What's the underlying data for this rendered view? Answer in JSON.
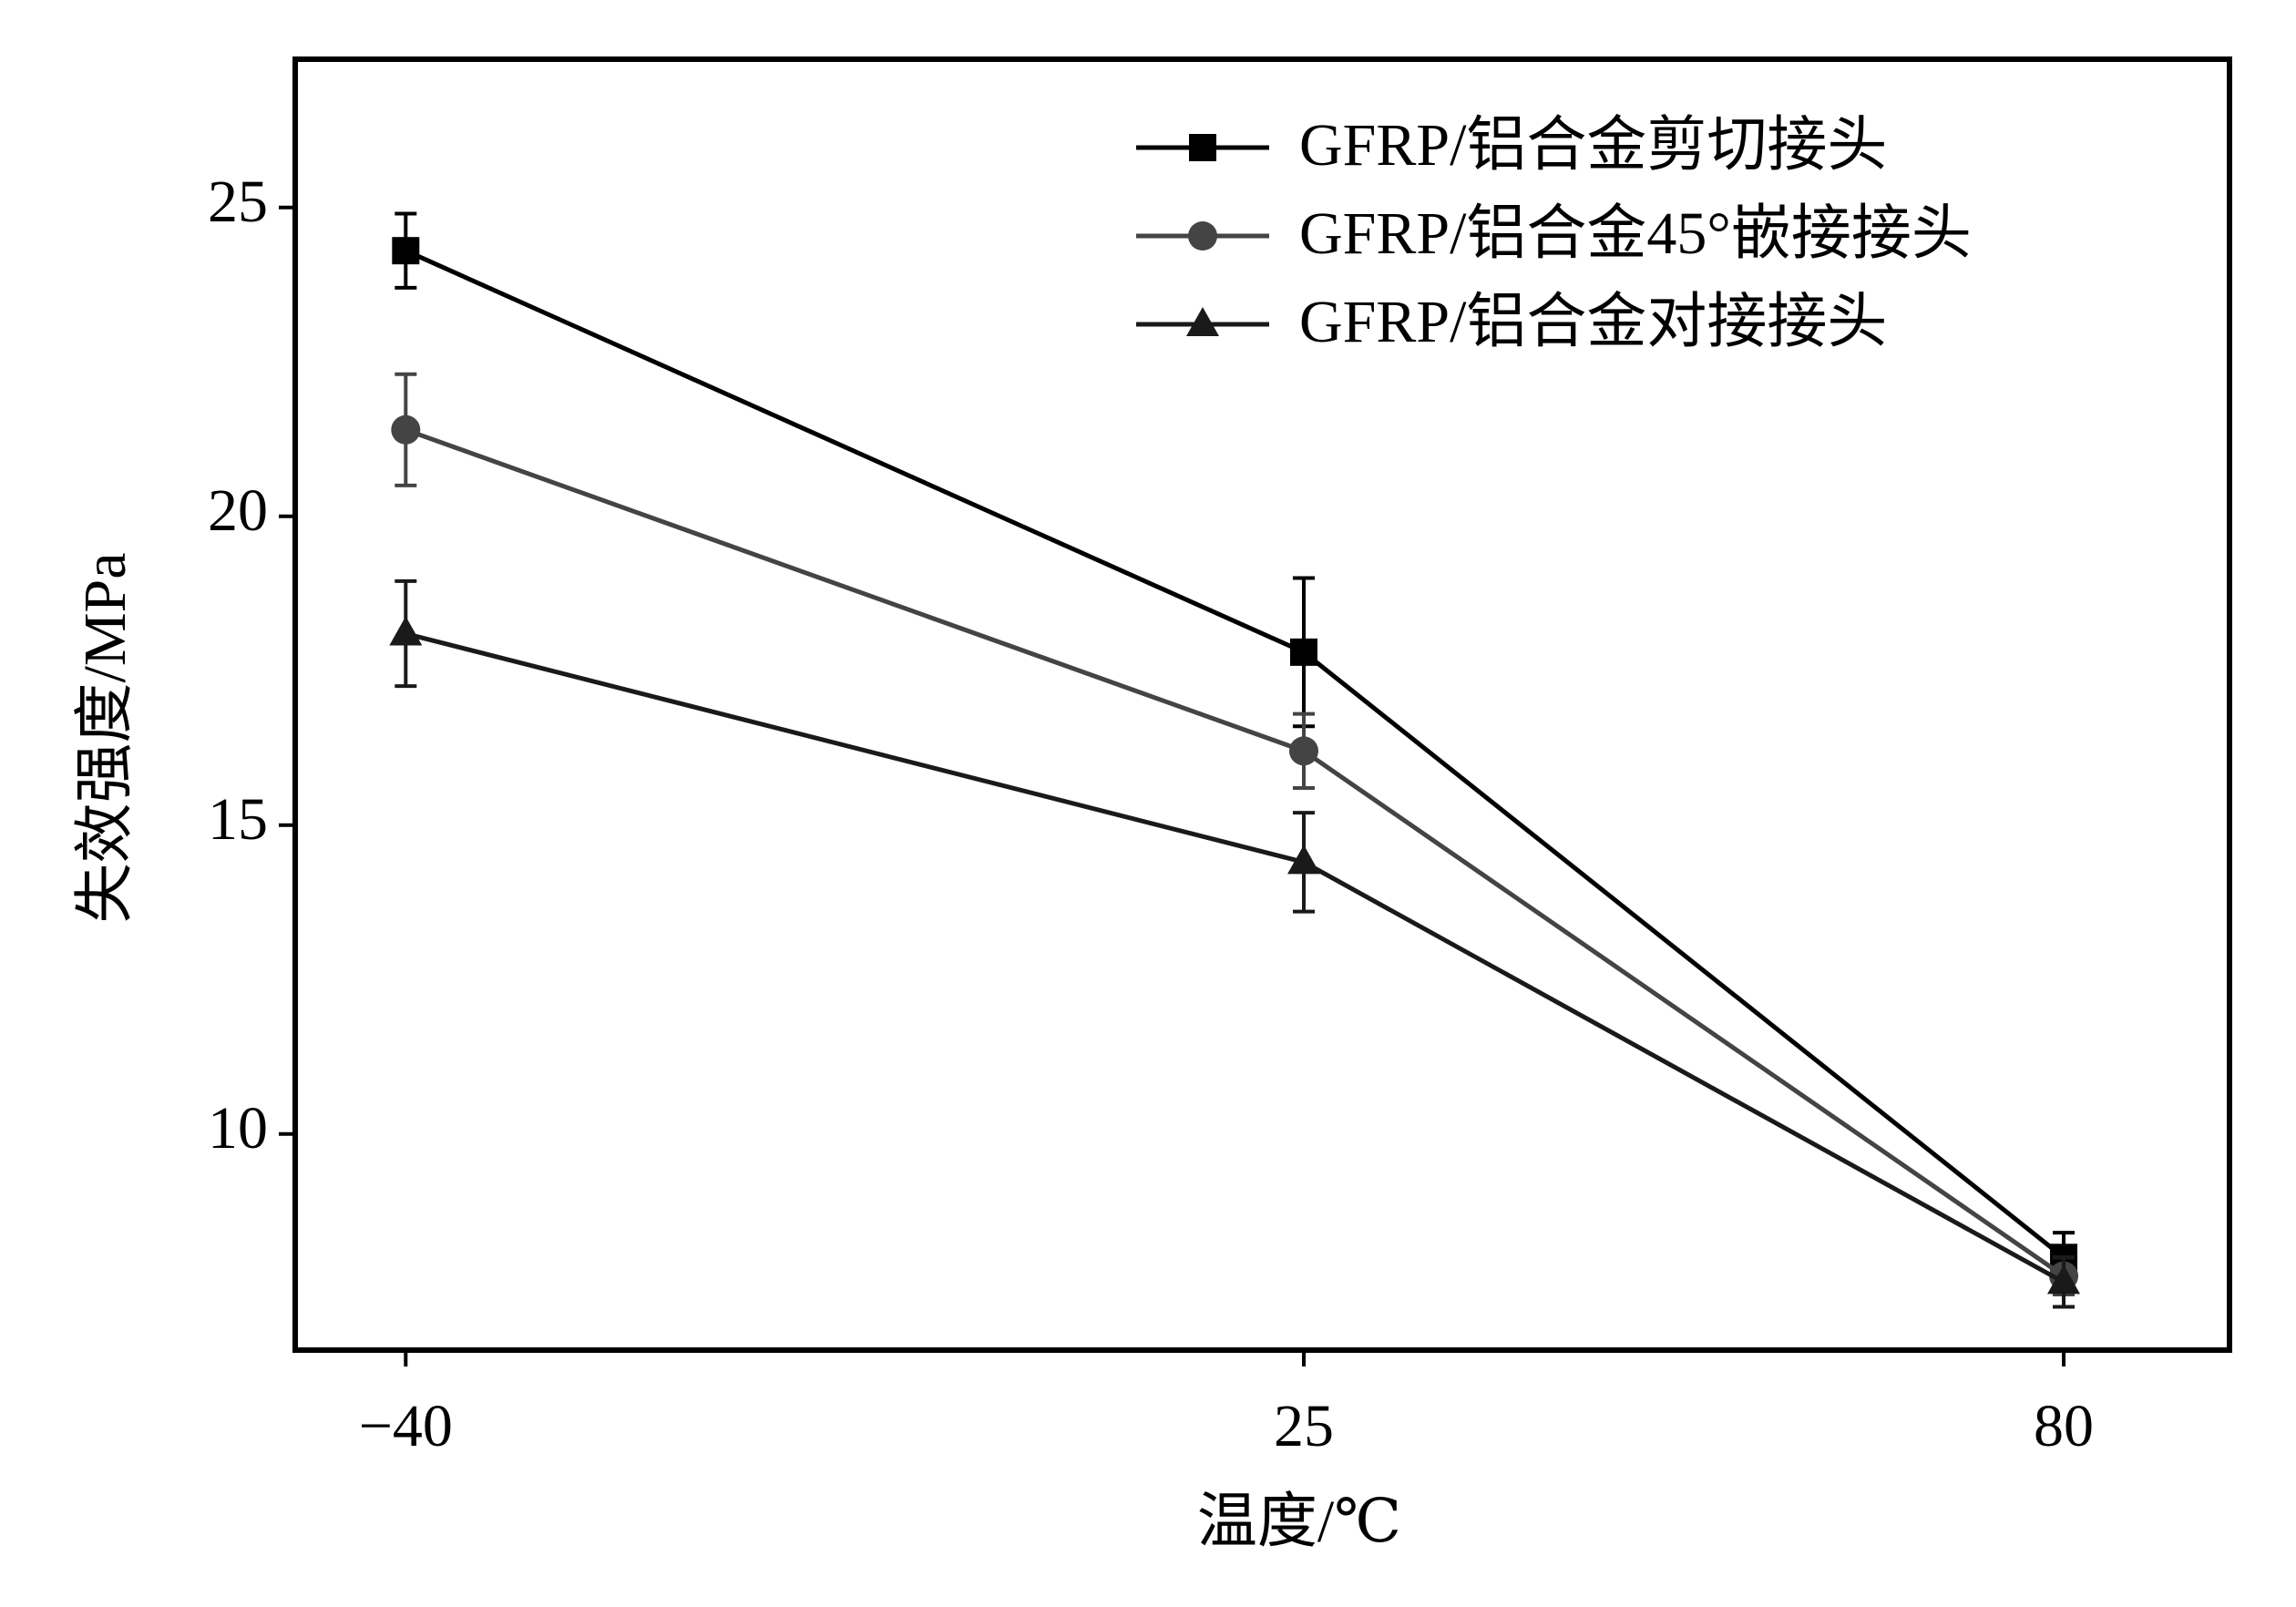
{
  "chart_data": {
    "type": "line",
    "x_label": "温度/℃",
    "y_label": "失效强度/MPa",
    "x": [
      -40,
      25,
      80
    ],
    "xlim": [
      -48,
      92
    ],
    "xticks": [
      {
        "value": -40,
        "label": "−40"
      },
      25,
      80
    ],
    "ylim": [
      6.5,
      27.4
    ],
    "yticks": [
      10,
      15,
      20,
      25
    ],
    "legend": "upper right",
    "series": [
      {
        "name": "GFRP/铝合金剪切接头",
        "color": "#000000",
        "marker": "square",
        "values": [
          24.3,
          17.8,
          8.0
        ],
        "errors": [
          0.6,
          1.2,
          0.4
        ]
      },
      {
        "name": "GFRP/铝合金45°嵌接接头",
        "color": "#444444",
        "marker": "circle",
        "values": [
          21.4,
          16.2,
          7.7
        ],
        "errors": [
          0.9,
          0.6,
          0.3
        ]
      },
      {
        "name": "GFRP/铝合金对接接头",
        "color": "#1a1a1a",
        "marker": "triangle",
        "values": [
          18.1,
          14.4,
          7.6
        ],
        "errors": [
          0.85,
          0.8,
          0.4
        ]
      }
    ]
  }
}
